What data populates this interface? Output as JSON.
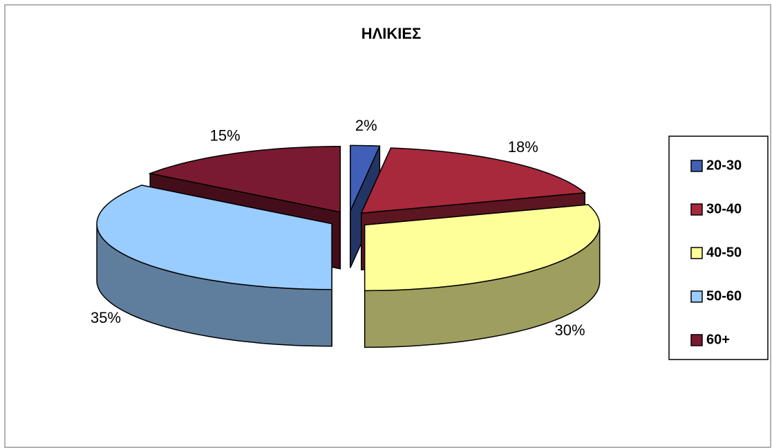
{
  "chart_data": {
    "type": "pie3d",
    "title": "ΗΛΙΚΙΕΣ",
    "categories": [
      "20-30",
      "30-40",
      "40-50",
      "50-60",
      "60+"
    ],
    "values": [
      2,
      18,
      30,
      35,
      15
    ],
    "value_labels": [
      "2%",
      "18%",
      "30%",
      "35%",
      "15%"
    ],
    "colors": [
      "#4060b8",
      "#a8283c",
      "#ffff99",
      "#99ccff",
      "#7a1a30"
    ],
    "legend": "right"
  }
}
